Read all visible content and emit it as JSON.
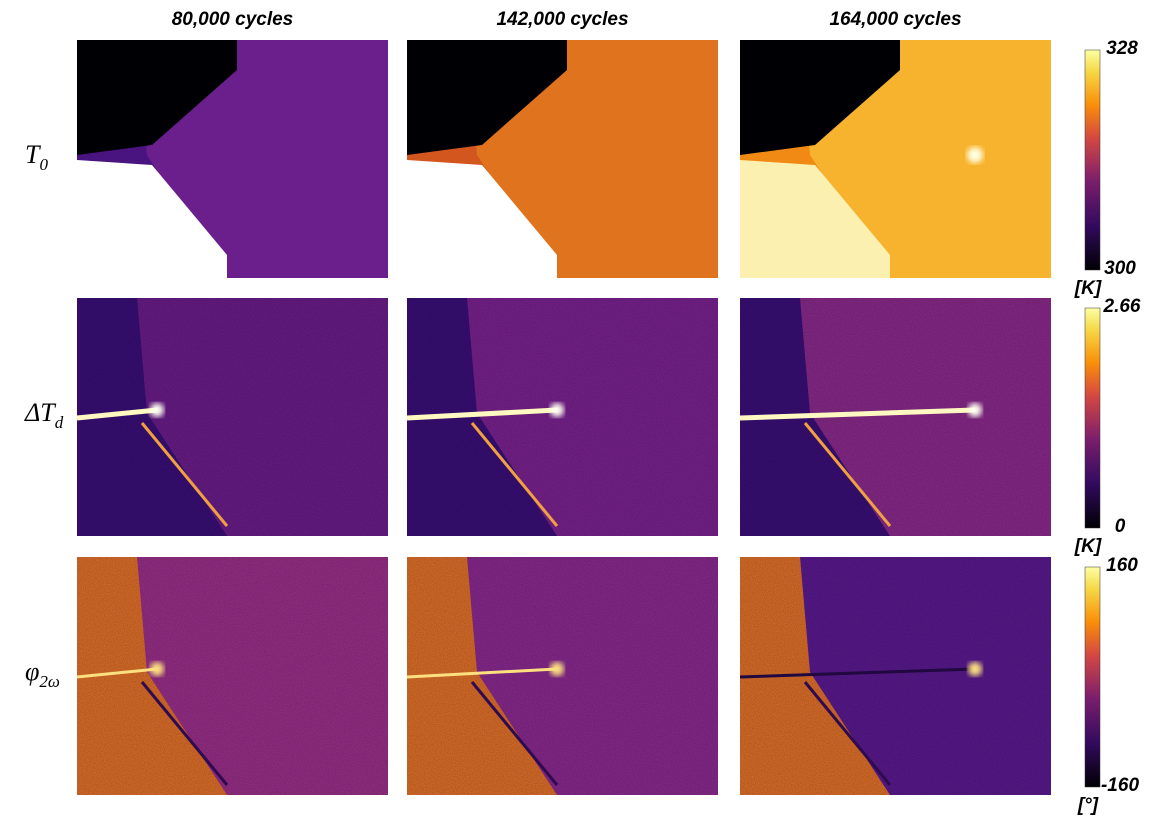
{
  "columns": [
    "80,000 cycles",
    "142,000 cycles",
    "164,000 cycles"
  ],
  "rows": [
    {
      "symbol": "T",
      "subscript": "0",
      "colorbar": {
        "max": "328",
        "min": "300",
        "unit": "[K]"
      }
    },
    {
      "symbol": "ΔT",
      "subscript": "d",
      "colorbar": {
        "max": "2.66",
        "min": "0",
        "unit": "[K]"
      }
    },
    {
      "symbol": "φ",
      "subscript": "2ω",
      "colorbar": {
        "max": "160",
        "min": "-160",
        "unit": "[°]"
      }
    }
  ]
}
